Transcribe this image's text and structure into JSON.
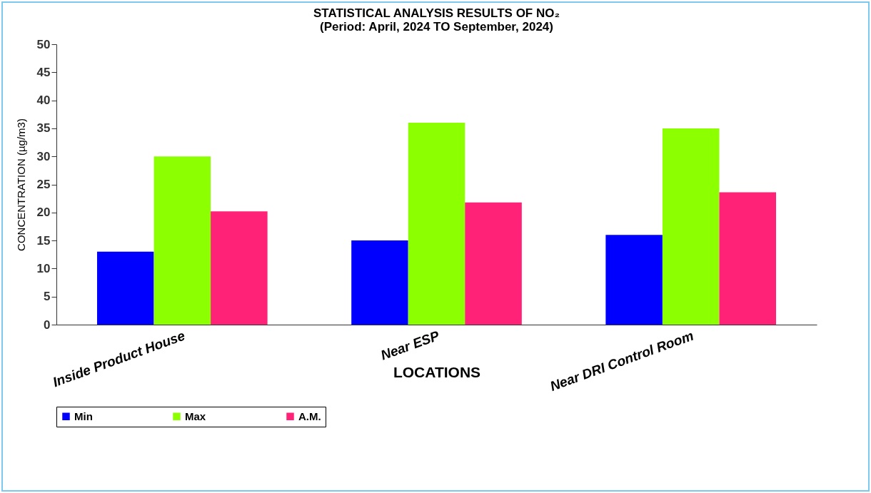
{
  "chart_data": {
    "type": "bar",
    "title": "STATISTICAL ANALYSIS RESULTS OF NO₂",
    "subtitle": "(Period: April, 2024 TO September, 2024)",
    "xlabel": "LOCATIONS",
    "ylabel": "CONCENTRATION (µg/m3)",
    "categories": [
      "Inside Product House",
      "Near ESP",
      "Near DRI Control Room"
    ],
    "series": [
      {
        "name": "Min",
        "color": "#0000ff",
        "values": [
          13,
          15,
          16
        ]
      },
      {
        "name": "Max",
        "color": "#8cff00",
        "values": [
          30,
          36,
          35
        ]
      },
      {
        "name": "A.M.",
        "color": "#ff2277",
        "values": [
          20.2,
          21.8,
          23.6
        ]
      }
    ],
    "ylim": [
      0,
      50
    ],
    "yticks": [
      0,
      5,
      10,
      15,
      20,
      25,
      30,
      35,
      40,
      45,
      50
    ],
    "grid": false,
    "legend": "bottom"
  }
}
